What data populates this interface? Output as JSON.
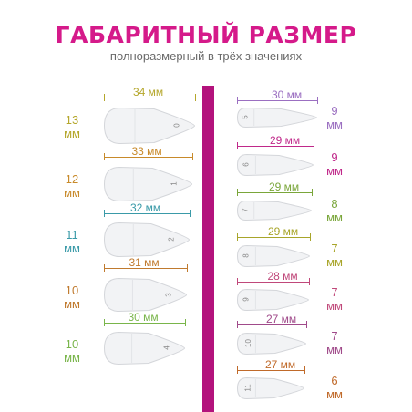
{
  "header": {
    "title": "ГАБАРИТНЫЙ РАЗМЕР",
    "subtitle": "полноразмерный в трёх значениях"
  },
  "colors": {
    "accent": "#d51a8a",
    "divider": "#b3127c",
    "tip_fill": "#f2f3f5",
    "tip_stroke": "#d4d6da"
  },
  "left_tips": [
    {
      "size": "0",
      "length": "34 мм",
      "width_value": "13",
      "width_unit": "мм",
      "color": "#b5a72c"
    },
    {
      "size": "1",
      "length": "33 мм",
      "width_value": "12",
      "width_unit": "мм",
      "color": "#c88a2a"
    },
    {
      "size": "2",
      "length": "32 мм",
      "width_value": "11",
      "width_unit": "мм",
      "color": "#3a9aa8"
    },
    {
      "size": "3",
      "length": "31 мм",
      "width_value": "10",
      "width_unit": "мм",
      "color": "#c07a2e"
    },
    {
      "size": "4",
      "length": "30 мм",
      "width_value": "10",
      "width_unit": "мм",
      "color": "#79b54a"
    }
  ],
  "right_tips": [
    {
      "size": "5",
      "length": "30 мм",
      "width_value": "9",
      "width_unit": "мм",
      "color": "#9b6fc1"
    },
    {
      "size": "6",
      "length": "29 мм",
      "width_value": "9",
      "width_unit": "мм",
      "color": "#c0288a"
    },
    {
      "size": "7",
      "length": "29 мм",
      "width_value": "8",
      "width_unit": "мм",
      "color": "#7aa63a"
    },
    {
      "size": "8",
      "length": "29 мм",
      "width_value": "7",
      "width_unit": "мм",
      "color": "#a8a52a"
    },
    {
      "size": "9",
      "length": "28 мм",
      "width_value": "7",
      "width_unit": "мм",
      "color": "#c0487a"
    },
    {
      "size": "10",
      "length": "27 мм",
      "width_value": "7",
      "width_unit": "мм",
      "color": "#a04a8a"
    },
    {
      "size": "11",
      "length": "27 мм",
      "width_value": "6",
      "width_unit": "мм",
      "color": "#c06a2a"
    }
  ]
}
